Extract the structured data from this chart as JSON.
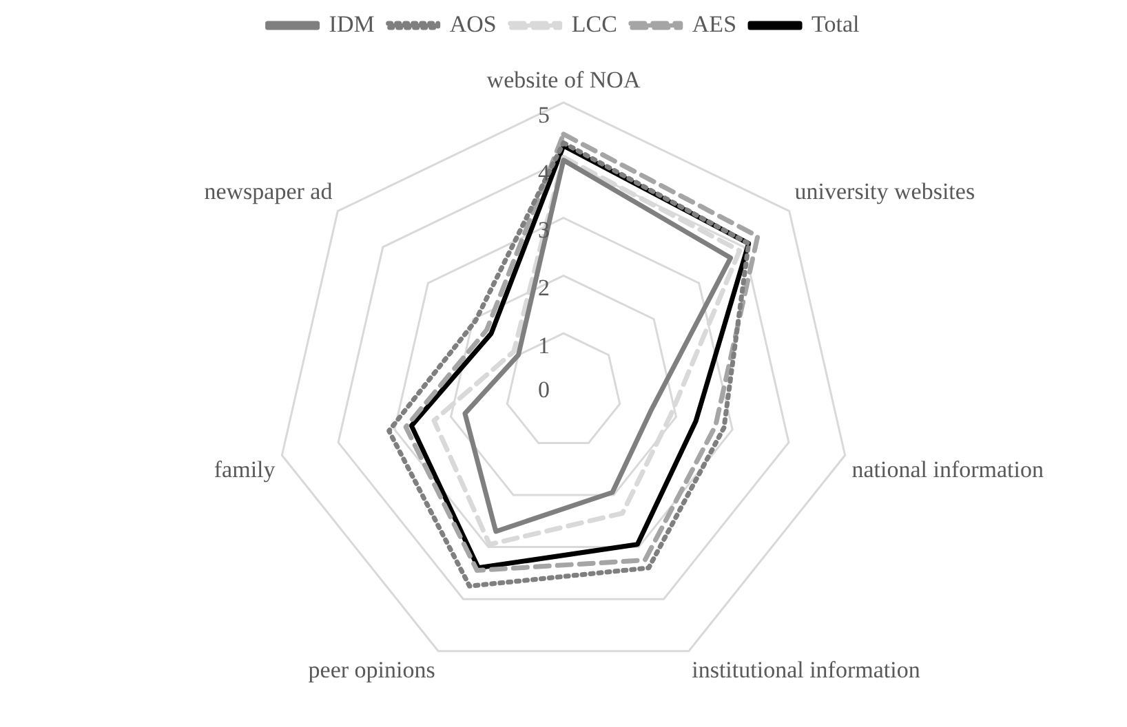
{
  "chart_data": {
    "type": "radar",
    "categories": [
      "website of NOA",
      "university websites",
      "national information",
      "institutional information",
      "peer opinions",
      "family",
      "newspaper ad"
    ],
    "ylim": [
      0,
      5
    ],
    "yticks": [
      0,
      1,
      2,
      3,
      4,
      5
    ],
    "grid": true,
    "legend": "top",
    "marker": "none",
    "series": [
      {
        "name": "IDM",
        "color": "#7f7f7f",
        "line_style": "solid",
        "values": [
          4.0,
          3.7,
          1.55,
          1.95,
          2.7,
          1.75,
          1.0
        ]
      },
      {
        "name": "AOS",
        "color": "#7f7f7f",
        "line_style": "dotted",
        "values": [
          4.3,
          4.1,
          2.85,
          3.4,
          3.75,
          3.1,
          1.95
        ]
      },
      {
        "name": "LCC",
        "color": "#d9d9d9",
        "line_style": "dashed",
        "values": [
          4.05,
          3.9,
          1.9,
          2.35,
          2.95,
          2.3,
          1.1
        ]
      },
      {
        "name": "AES",
        "color": "#a5a5a5",
        "line_style": "dashed",
        "values": [
          4.45,
          4.3,
          2.7,
          3.25,
          3.45,
          2.8,
          1.7
        ]
      },
      {
        "name": "Total",
        "color": "#000000",
        "line_style": "solid",
        "values": [
          4.25,
          4.1,
          2.35,
          2.95,
          3.4,
          2.7,
          1.6
        ]
      }
    ]
  }
}
